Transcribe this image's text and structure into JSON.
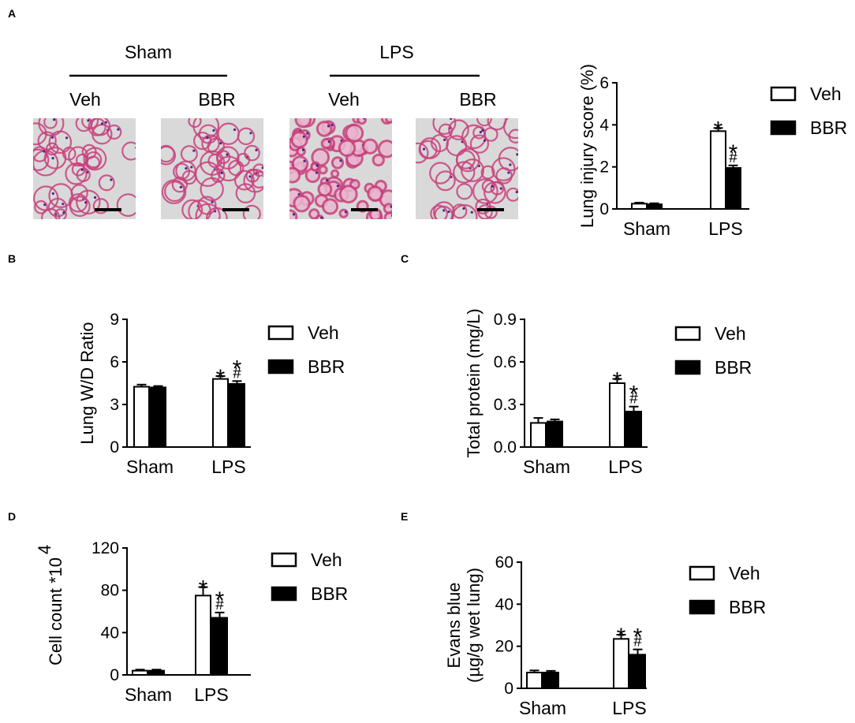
{
  "panels": {
    "a": {
      "letter": "A",
      "group_left": "Sham",
      "group_right": "LPS",
      "col_labels": [
        "Veh",
        "BBR",
        "Veh",
        "BBR"
      ]
    },
    "b": {
      "letter": "B"
    },
    "c": {
      "letter": "C"
    },
    "d": {
      "letter": "D"
    },
    "e": {
      "letter": "E"
    }
  },
  "colors": {
    "veh_fill": "#ffffff",
    "bbr_fill": "#000000",
    "stroke": "#000000",
    "tissue_bg": "#d9d9d9",
    "tissue_stain": "#c8417c"
  },
  "chart_data": [
    {
      "id": "A",
      "type": "bar",
      "categories": [
        "Sham",
        "LPS"
      ],
      "series": [
        {
          "name": "Veh",
          "values": [
            0.25,
            3.7
          ],
          "errors": [
            0.05,
            0.15
          ]
        },
        {
          "name": "BBR",
          "values": [
            0.22,
            1.95
          ],
          "errors": [
            0.05,
            0.12
          ]
        }
      ],
      "ylabel": "Lung injury score (%)",
      "ylim": [
        0,
        6
      ],
      "yticks": [
        "0",
        "2",
        "4",
        "6"
      ],
      "annotations": [
        {
          "category": "LPS",
          "series": "Veh",
          "marks": [
            "*"
          ]
        },
        {
          "category": "LPS",
          "series": "BBR",
          "marks": [
            "*",
            "#"
          ]
        }
      ],
      "legend": "right"
    },
    {
      "id": "B",
      "type": "bar",
      "categories": [
        "Sham",
        "LPS"
      ],
      "series": [
        {
          "name": "Veh",
          "values": [
            4.25,
            4.8
          ],
          "errors": [
            0.15,
            0.2
          ]
        },
        {
          "name": "BBR",
          "values": [
            4.2,
            4.45
          ],
          "errors": [
            0.1,
            0.2
          ]
        }
      ],
      "ylabel": "Lung W/D Ratio",
      "ylim": [
        0,
        9
      ],
      "yticks": [
        "0",
        "3",
        "6",
        "9"
      ],
      "annotations": [
        {
          "category": "LPS",
          "series": "Veh",
          "marks": [
            "*"
          ]
        },
        {
          "category": "LPS",
          "series": "BBR",
          "marks": [
            "*",
            "#"
          ]
        }
      ],
      "legend": "right"
    },
    {
      "id": "C",
      "type": "bar",
      "categories": [
        "Sham",
        "LPS"
      ],
      "series": [
        {
          "name": "Veh",
          "values": [
            0.17,
            0.45
          ],
          "errors": [
            0.035,
            0.03
          ]
        },
        {
          "name": "BBR",
          "values": [
            0.18,
            0.25
          ],
          "errors": [
            0.015,
            0.035
          ]
        }
      ],
      "ylabel": "Total protein (mg/L)",
      "ylim": [
        0,
        0.9
      ],
      "yticks": [
        "0.0",
        "0.3",
        "0.6",
        "0.9"
      ],
      "annotations": [
        {
          "category": "LPS",
          "series": "Veh",
          "marks": [
            "*"
          ]
        },
        {
          "category": "LPS",
          "series": "BBR",
          "marks": [
            "*",
            "#"
          ]
        }
      ],
      "legend": "right"
    },
    {
      "id": "D",
      "type": "bar",
      "categories": [
        "Sham",
        "LPS"
      ],
      "series": [
        {
          "name": "Veh",
          "values": [
            4,
            75
          ],
          "errors": [
            1,
            8
          ]
        },
        {
          "name": "BBR",
          "values": [
            4,
            54
          ],
          "errors": [
            1,
            5
          ]
        }
      ],
      "ylabel": "Cell count *10",
      "ylabel_superscript": "4",
      "ylim": [
        0,
        120
      ],
      "yticks": [
        "0",
        "40",
        "80",
        "120"
      ],
      "annotations": [
        {
          "category": "LPS",
          "series": "Veh",
          "marks": [
            "*"
          ]
        },
        {
          "category": "LPS",
          "series": "BBR",
          "marks": [
            "*",
            "#"
          ]
        }
      ],
      "legend": "right"
    },
    {
      "id": "E",
      "type": "bar",
      "categories": [
        "Sham",
        "LPS"
      ],
      "series": [
        {
          "name": "Veh",
          "values": [
            7.5,
            23.5
          ],
          "errors": [
            1,
            2
          ]
        },
        {
          "name": "BBR",
          "values": [
            7.5,
            16
          ],
          "errors": [
            0.8,
            2.5
          ]
        }
      ],
      "ylabel": "Evans blue",
      "ylabel_line2": "(µg/g wet lung)",
      "ylim": [
        0,
        60
      ],
      "yticks": [
        "0",
        "20",
        "40",
        "60"
      ],
      "annotations": [
        {
          "category": "LPS",
          "series": "Veh",
          "marks": [
            "*"
          ]
        },
        {
          "category": "LPS",
          "series": "BBR",
          "marks": [
            "*",
            "#"
          ]
        }
      ],
      "legend": "right"
    }
  ]
}
